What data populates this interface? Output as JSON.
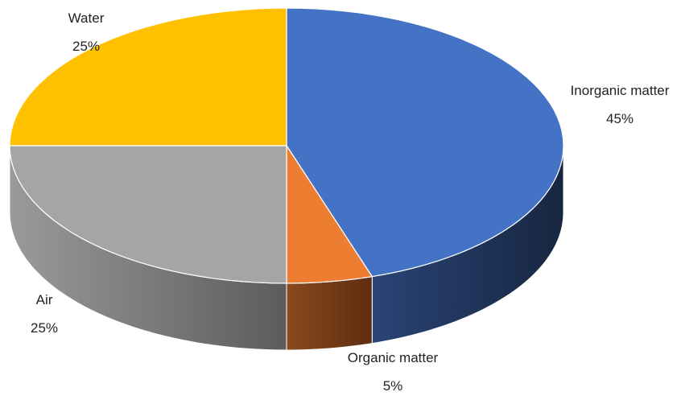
{
  "chart_data": {
    "type": "pie",
    "style": "3d",
    "title": "",
    "slices": [
      {
        "label": "Inorganic matter",
        "value": 45,
        "value_text": "45%",
        "color": "#4472C4",
        "side_color": "#1F3258"
      },
      {
        "label": "Organic matter",
        "value": 5,
        "value_text": "5%",
        "color": "#ED7D31",
        "side_color": "#7A3E17"
      },
      {
        "label": "Air",
        "value": 25,
        "value_text": "25%",
        "color": "#A5A5A5",
        "side_color": "#7A7A7A"
      },
      {
        "label": "Water",
        "value": 25,
        "value_text": "25%",
        "color": "#FFC000",
        "side_color": "#B38700"
      }
    ],
    "start_angle_deg": 90,
    "direction": "clockwise",
    "legend": "none",
    "data_labels": "outside"
  }
}
